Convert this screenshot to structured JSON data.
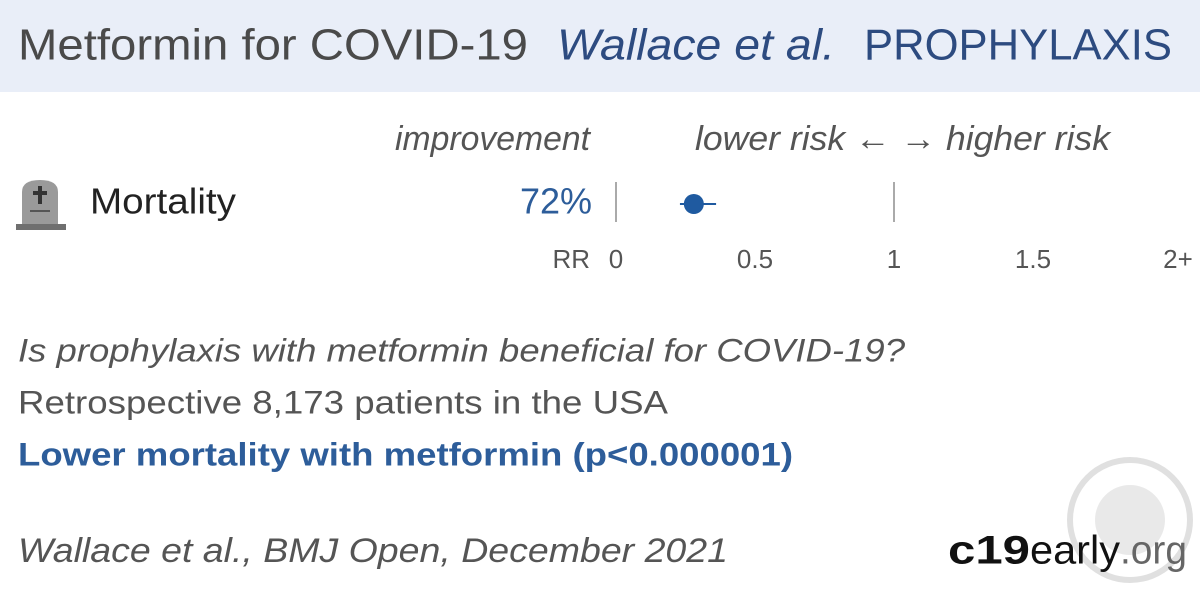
{
  "header": {
    "title": "Metformin for COVID-19",
    "authors": "Wallace et al.",
    "setting": "PROPHYLAXIS"
  },
  "plot": {
    "type": "forest",
    "column_label": "improvement",
    "direction_label": "lower risk ← → higher risk",
    "axis_label": "RR",
    "xlim": [
      0,
      2
    ],
    "xticks": [
      0,
      0.5,
      1,
      1.5,
      {
        "value": 2,
        "label": "2+"
      }
    ],
    "color": "#1f5aa0",
    "rows": [
      {
        "name": "Mortality",
        "improvement": "72%",
        "value": 0.28,
        "ci": [
          0.23,
          0.36
        ]
      }
    ]
  },
  "summary": {
    "question": "Is prophylaxis with metformin beneficial for COVID-19?",
    "design": "Retrospective 8,173 patients in the USA",
    "conclusion": "Lower mortality with metformin (p<0.000001)"
  },
  "footer": {
    "citation": "Wallace et al., BMJ Open, December 2021",
    "brand": [
      "c19",
      "early",
      ".org"
    ]
  }
}
